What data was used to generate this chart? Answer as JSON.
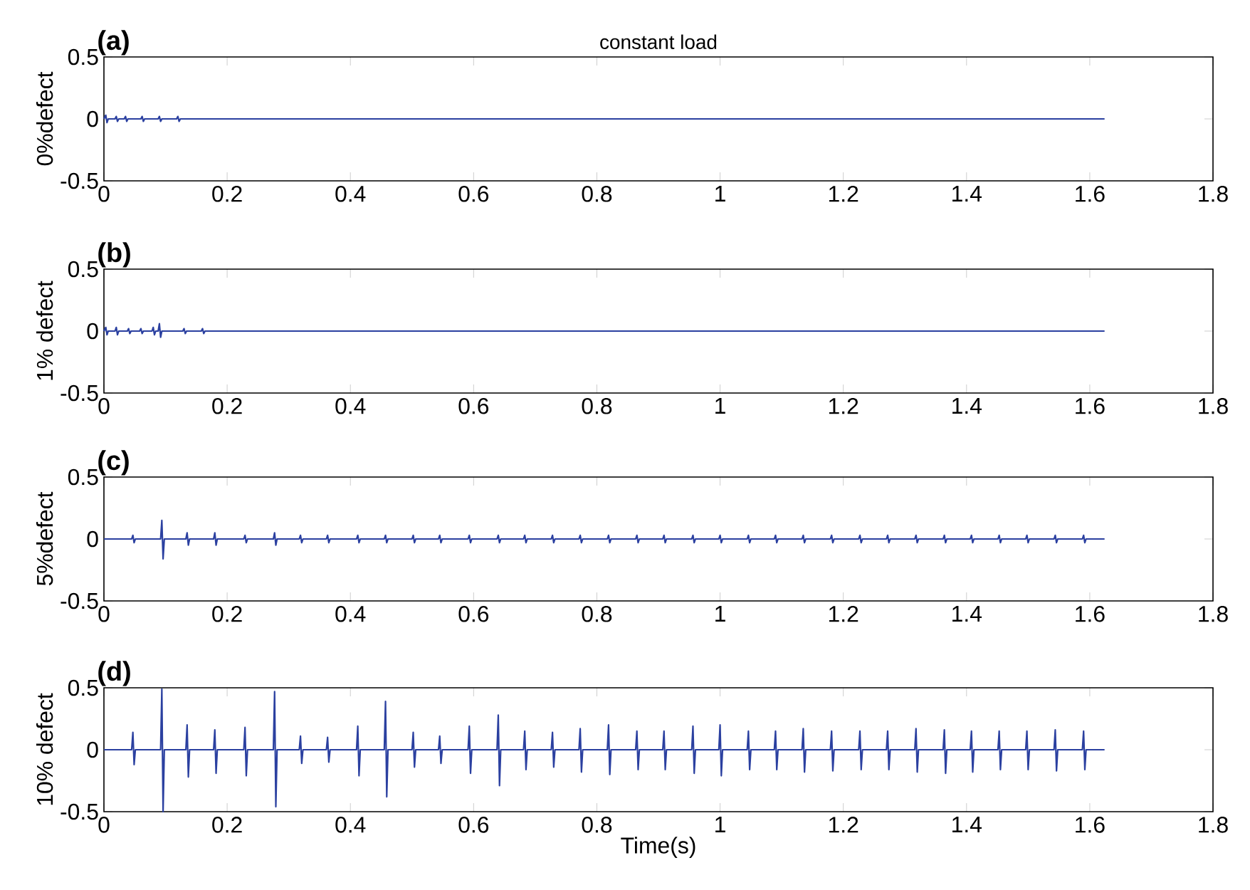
{
  "chart_data": [
    {
      "type": "line",
      "title": "constant load",
      "ylabel": "0%defect",
      "annotations": [
        "(a)"
      ],
      "xlim": [
        0,
        1.8
      ],
      "ylim": [
        -0.5,
        0.5
      ],
      "xticks": [
        0,
        0.2,
        0.4,
        0.6,
        0.8,
        1,
        1.2,
        1.4,
        1.6,
        1.8
      ],
      "yticks": [
        -0.5,
        0,
        0.5
      ],
      "series": [
        {
          "color": "#2b40a0",
          "x": [
            0,
            0.003,
            0.005,
            0.007,
            0.018,
            0.02,
            0.022,
            0.024,
            0.033,
            0.035,
            0.037,
            0.039,
            0.06,
            0.062,
            0.064,
            0.066,
            0.088,
            0.09,
            0.092,
            0.094,
            0.118,
            0.12,
            0.122,
            0.124,
            1.624
          ],
          "values": [
            0,
            0.03,
            -0.03,
            0,
            0,
            0.02,
            -0.02,
            0,
            0,
            0.02,
            -0.02,
            0,
            0,
            0.02,
            -0.02,
            0,
            0,
            0.02,
            -0.02,
            0,
            0,
            0.02,
            -0.02,
            0,
            0
          ]
        }
      ]
    },
    {
      "type": "line",
      "ylabel": "1% defect",
      "annotations": [
        "(b)"
      ],
      "xlim": [
        0,
        1.8
      ],
      "ylim": [
        -0.5,
        0.5
      ],
      "xticks": [
        0,
        0.2,
        0.4,
        0.6,
        0.8,
        1,
        1.2,
        1.4,
        1.6,
        1.8
      ],
      "yticks": [
        -0.5,
        0,
        0.5
      ],
      "series": [
        {
          "color": "#2b40a0",
          "x": [
            0,
            0.003,
            0.005,
            0.007,
            0.018,
            0.02,
            0.022,
            0.024,
            0.038,
            0.04,
            0.042,
            0.044,
            0.058,
            0.06,
            0.062,
            0.064,
            0.078,
            0.08,
            0.082,
            0.084,
            0.088,
            0.09,
            0.092,
            0.094,
            0.128,
            0.13,
            0.132,
            0.134,
            0.158,
            0.16,
            0.162,
            0.164,
            1.624
          ],
          "values": [
            0,
            0.03,
            -0.03,
            0,
            0,
            0.03,
            -0.03,
            0,
            0,
            0.02,
            -0.02,
            0,
            0,
            0.02,
            -0.02,
            0,
            0,
            0.03,
            -0.03,
            0,
            0,
            0.06,
            -0.05,
            0,
            0,
            0.02,
            -0.02,
            0,
            0,
            0.02,
            -0.02,
            0,
            0
          ]
        }
      ]
    },
    {
      "type": "line",
      "ylabel": "5%defect",
      "annotations": [
        "(c)"
      ],
      "xlim": [
        0,
        1.8
      ],
      "ylim": [
        -0.5,
        0.5
      ],
      "xticks": [
        0,
        0.2,
        0.4,
        0.6,
        0.8,
        1,
        1.2,
        1.4,
        1.6,
        1.8
      ],
      "yticks": [
        -0.5,
        0,
        0.5
      ],
      "series": [
        {
          "color": "#2b40a0",
          "x": [
            0,
            0.045,
            0.047,
            0.049,
            0.051,
            0.092,
            0.094,
            0.096,
            0.098,
            0.133,
            0.135,
            0.137,
            0.139,
            0.178,
            0.18,
            0.182,
            0.184,
            0.227,
            0.229,
            0.231,
            0.233,
            0.275,
            0.277,
            0.279,
            0.281,
            0.317,
            0.319,
            0.321,
            0.323,
            0.361,
            0.363,
            0.365,
            0.367,
            0.41,
            0.412,
            0.414,
            0.416,
            0.455,
            0.457,
            0.459,
            0.461,
            0.5,
            0.502,
            0.504,
            0.506,
            0.543,
            0.545,
            0.547,
            0.549,
            0.591,
            0.593,
            0.595,
            0.597,
            0.638,
            0.64,
            0.642,
            0.644,
            0.681,
            0.683,
            0.685,
            0.687,
            0.726,
            0.728,
            0.73,
            0.732,
            0.771,
            0.773,
            0.775,
            0.777,
            0.817,
            0.819,
            0.821,
            0.823,
            0.863,
            0.865,
            0.867,
            0.869,
            0.907,
            0.909,
            0.911,
            0.913,
            0.954,
            0.956,
            0.958,
            0.96,
            0.998,
            1.0,
            1.002,
            1.004,
            1.044,
            1.046,
            1.048,
            1.05,
            1.088,
            1.09,
            1.092,
            1.094,
            1.133,
            1.135,
            1.137,
            1.139,
            1.179,
            1.181,
            1.183,
            1.185,
            1.225,
            1.227,
            1.229,
            1.231,
            1.27,
            1.272,
            1.274,
            1.276,
            1.316,
            1.318,
            1.32,
            1.322,
            1.362,
            1.364,
            1.366,
            1.368,
            1.406,
            1.408,
            1.41,
            1.412,
            1.451,
            1.453,
            1.455,
            1.457,
            1.496,
            1.498,
            1.5,
            1.502,
            1.542,
            1.544,
            1.546,
            1.548,
            1.588,
            1.59,
            1.592,
            1.594,
            1.624
          ],
          "values": [
            0,
            0,
            0.03,
            -0.03,
            0,
            0,
            0.15,
            -0.16,
            0,
            0,
            0.05,
            -0.05,
            0,
            0,
            0.05,
            -0.05,
            0,
            0,
            0.03,
            -0.03,
            0,
            0,
            0.05,
            -0.05,
            0,
            0,
            0.03,
            -0.03,
            0,
            0,
            0.03,
            -0.03,
            0,
            0,
            0.03,
            -0.03,
            0,
            0,
            0.03,
            -0.03,
            0,
            0,
            0.03,
            -0.03,
            0,
            0,
            0.03,
            -0.03,
            0,
            0,
            0.03,
            -0.03,
            0,
            0,
            0.03,
            -0.03,
            0,
            0,
            0.03,
            -0.03,
            0,
            0,
            0.03,
            -0.03,
            0,
            0,
            0.03,
            -0.03,
            0,
            0,
            0.03,
            -0.03,
            0,
            0,
            0.03,
            -0.03,
            0,
            0,
            0.03,
            -0.03,
            0,
            0,
            0.03,
            -0.03,
            0,
            0,
            0.03,
            -0.03,
            0,
            0,
            0.03,
            -0.03,
            0,
            0,
            0.03,
            -0.03,
            0,
            0,
            0.03,
            -0.03,
            0,
            0,
            0.03,
            -0.03,
            0,
            0,
            0.03,
            -0.03,
            0,
            0,
            0.03,
            -0.03,
            0,
            0,
            0.03,
            -0.03,
            0,
            0,
            0.03,
            -0.03,
            0,
            0,
            0.03,
            -0.03,
            0,
            0,
            0.03,
            -0.03,
            0,
            0,
            0.03,
            -0.03,
            0,
            0,
            0.03,
            -0.03,
            0,
            0,
            0.03,
            -0.03,
            0,
            0
          ]
        }
      ]
    },
    {
      "type": "line",
      "xlabel": "Time(s)",
      "ylabel": "10% defect",
      "annotations": [
        "(d)"
      ],
      "xlim": [
        0,
        1.8
      ],
      "ylim": [
        -0.5,
        0.5
      ],
      "xticks": [
        0,
        0.2,
        0.4,
        0.6,
        0.8,
        1,
        1.2,
        1.4,
        1.6,
        1.8
      ],
      "yticks": [
        -0.5,
        0,
        0.5
      ],
      "series": [
        {
          "color": "#2b40a0",
          "x": [
            0,
            0.045,
            0.047,
            0.049,
            0.051,
            0.092,
            0.094,
            0.096,
            0.098,
            0.133,
            0.135,
            0.137,
            0.139,
            0.178,
            0.18,
            0.182,
            0.184,
            0.227,
            0.229,
            0.231,
            0.233,
            0.275,
            0.277,
            0.279,
            0.281,
            0.317,
            0.319,
            0.321,
            0.323,
            0.361,
            0.363,
            0.365,
            0.367,
            0.41,
            0.412,
            0.414,
            0.416,
            0.455,
            0.457,
            0.459,
            0.461,
            0.5,
            0.502,
            0.504,
            0.506,
            0.543,
            0.545,
            0.547,
            0.549,
            0.591,
            0.593,
            0.595,
            0.597,
            0.638,
            0.64,
            0.642,
            0.644,
            0.681,
            0.683,
            0.685,
            0.687,
            0.726,
            0.728,
            0.73,
            0.732,
            0.771,
            0.773,
            0.775,
            0.777,
            0.817,
            0.819,
            0.821,
            0.823,
            0.863,
            0.865,
            0.867,
            0.869,
            0.907,
            0.909,
            0.911,
            0.913,
            0.954,
            0.956,
            0.958,
            0.96,
            0.998,
            1.0,
            1.002,
            1.004,
            1.044,
            1.046,
            1.048,
            1.05,
            1.088,
            1.09,
            1.092,
            1.094,
            1.133,
            1.135,
            1.137,
            1.139,
            1.179,
            1.181,
            1.183,
            1.185,
            1.225,
            1.227,
            1.229,
            1.231,
            1.27,
            1.272,
            1.274,
            1.276,
            1.316,
            1.318,
            1.32,
            1.322,
            1.362,
            1.364,
            1.366,
            1.368,
            1.406,
            1.408,
            1.41,
            1.412,
            1.451,
            1.453,
            1.455,
            1.457,
            1.496,
            1.498,
            1.5,
            1.502,
            1.542,
            1.544,
            1.546,
            1.548,
            1.588,
            1.59,
            1.592,
            1.594,
            1.624
          ],
          "values": [
            0,
            0,
            0.14,
            -0.12,
            0,
            0,
            0.49,
            -0.5,
            0,
            0,
            0.2,
            -0.22,
            0,
            0,
            0.16,
            -0.19,
            0,
            0,
            0.18,
            -0.21,
            0,
            0,
            0.47,
            -0.46,
            0,
            0,
            0.11,
            -0.11,
            0,
            0,
            0.1,
            -0.1,
            0,
            0,
            0.19,
            -0.21,
            0,
            0,
            0.39,
            -0.38,
            0,
            0,
            0.14,
            -0.14,
            0,
            0,
            0.11,
            -0.11,
            0,
            0,
            0.19,
            -0.19,
            0,
            0,
            0.28,
            -0.29,
            0,
            0,
            0.15,
            -0.16,
            0,
            0,
            0.14,
            -0.14,
            0,
            0,
            0.17,
            -0.18,
            0,
            0,
            0.2,
            -0.2,
            0,
            0,
            0.15,
            -0.16,
            0,
            0,
            0.15,
            -0.16,
            0,
            0,
            0.19,
            -0.19,
            0,
            0,
            0.2,
            -0.21,
            0,
            0,
            0.15,
            -0.16,
            0,
            0,
            0.15,
            -0.16,
            0,
            0,
            0.17,
            -0.18,
            0,
            0,
            0.15,
            -0.17,
            0,
            0,
            0.15,
            -0.16,
            0,
            0,
            0.15,
            -0.16,
            0,
            0,
            0.17,
            -0.18,
            0,
            0,
            0.16,
            -0.19,
            0,
            0,
            0.15,
            -0.18,
            0,
            0,
            0.15,
            -0.16,
            0,
            0,
            0.15,
            -0.16,
            0,
            0,
            0.16,
            -0.17,
            0,
            0,
            0.15,
            -0.16,
            0,
            0
          ]
        }
      ]
    }
  ]
}
